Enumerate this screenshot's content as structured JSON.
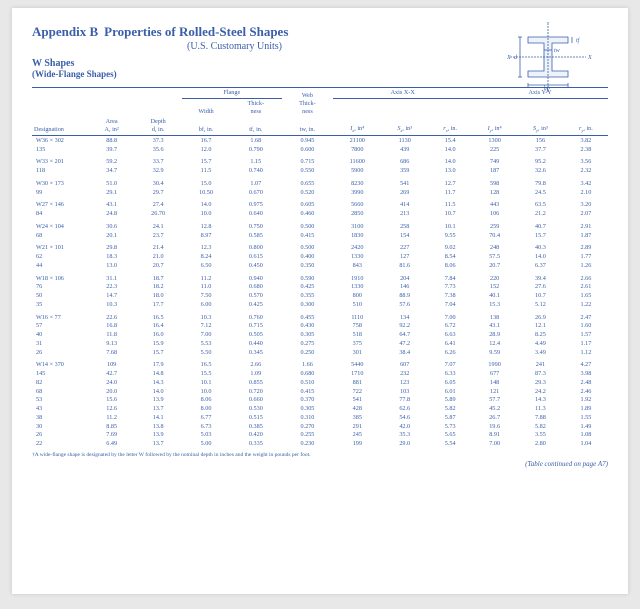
{
  "header": {
    "appendix": "Appendix B",
    "title": "Properties of Rolled-Steel Shapes",
    "units": "(U.S. Customary Units)",
    "section": "W Shapes",
    "section_sub": "(Wide-Flange Shapes)"
  },
  "diagram": {
    "stroke": "#3a5fa8",
    "label_y_top": "Y",
    "label_y_bot": "Y",
    "label_x_left": "X",
    "label_x_right": "X",
    "label_d": "d",
    "label_tf": "tf",
    "label_tw": "tw",
    "label_bf": "bf"
  },
  "columns": {
    "designation": "Designation",
    "area": "Area",
    "area_u": "A, in²",
    "depth": "Depth",
    "depth_u": "d, in.",
    "flange": "Flange",
    "width": "Width",
    "width_u": "bf, in.",
    "thick": "Thick-\nness",
    "thick_u": "tf, in.",
    "web": "Web\nThick-\nness",
    "web_u": "tw, in.",
    "axis_xx": "Axis X-X",
    "axis_yy": "Axis Y-Y",
    "Ix": "Ix, in⁴",
    "Sx": "Sx, in³",
    "rx": "rx, in.",
    "Iy": "Iy, in⁴",
    "Sy": "Sy, in³",
    "ry": "ry, in."
  },
  "groups": [
    {
      "rows": [
        [
          "W36 × 302",
          "88.8",
          "37.3",
          "16.7",
          "1.68",
          "0.945",
          "21100",
          "1130",
          "15.4",
          "1300",
          "156",
          "3.82"
        ],
        [
          "135",
          "39.7",
          "35.6",
          "12.0",
          "0.790",
          "0.600",
          "7800",
          "439",
          "14.0",
          "225",
          "37.7",
          "2.38"
        ]
      ]
    },
    {
      "rows": [
        [
          "W33 × 201",
          "59.2",
          "33.7",
          "15.7",
          "1.15",
          "0.715",
          "11600",
          "686",
          "14.0",
          "749",
          "95.2",
          "3.56"
        ],
        [
          "118",
          "34.7",
          "32.9",
          "11.5",
          "0.740",
          "0.550",
          "5900",
          "359",
          "13.0",
          "187",
          "32.6",
          "2.32"
        ]
      ]
    },
    {
      "rows": [
        [
          "W30 × 173",
          "51.0",
          "30.4",
          "15.0",
          "1.07",
          "0.655",
          "8230",
          "541",
          "12.7",
          "598",
          "79.8",
          "3.42"
        ],
        [
          "99",
          "29.1",
          "29.7",
          "10.50",
          "0.670",
          "0.520",
          "3990",
          "269",
          "11.7",
          "128",
          "24.5",
          "2.10"
        ]
      ]
    },
    {
      "rows": [
        [
          "W27 × 146",
          "43.1",
          "27.4",
          "14.0",
          "0.975",
          "0.605",
          "5660",
          "414",
          "11.5",
          "443",
          "63.5",
          "3.20"
        ],
        [
          "84",
          "24.8",
          "26.70",
          "10.0",
          "0.640",
          "0.460",
          "2850",
          "213",
          "10.7",
          "106",
          "21.2",
          "2.07"
        ]
      ]
    },
    {
      "rows": [
        [
          "W24 × 104",
          "30.6",
          "24.1",
          "12.8",
          "0.750",
          "0.500",
          "3100",
          "258",
          "10.1",
          "259",
          "40.7",
          "2.91"
        ],
        [
          "68",
          "20.1",
          "23.7",
          "8.97",
          "0.585",
          "0.415",
          "1830",
          "154",
          "9.55",
          "70.4",
          "15.7",
          "1.87"
        ]
      ]
    },
    {
      "rows": [
        [
          "W21 × 101",
          "29.8",
          "21.4",
          "12.3",
          "0.800",
          "0.500",
          "2420",
          "227",
          "9.02",
          "248",
          "40.3",
          "2.89"
        ],
        [
          "62",
          "18.3",
          "21.0",
          "8.24",
          "0.615",
          "0.400",
          "1330",
          "127",
          "8.54",
          "57.5",
          "14.0",
          "1.77"
        ],
        [
          "44",
          "13.0",
          "20.7",
          "6.50",
          "0.450",
          "0.350",
          "843",
          "81.6",
          "8.06",
          "20.7",
          "6.37",
          "1.26"
        ]
      ]
    },
    {
      "rows": [
        [
          "W18 × 106",
          "31.1",
          "18.7",
          "11.2",
          "0.940",
          "0.590",
          "1910",
          "204",
          "7.84",
          "220",
          "39.4",
          "2.66"
        ],
        [
          "76",
          "22.3",
          "18.2",
          "11.0",
          "0.680",
          "0.425",
          "1330",
          "146",
          "7.73",
          "152",
          "27.6",
          "2.61"
        ],
        [
          "50",
          "14.7",
          "18.0",
          "7.50",
          "0.570",
          "0.355",
          "800",
          "88.9",
          "7.38",
          "40.1",
          "10.7",
          "1.65"
        ],
        [
          "35",
          "10.3",
          "17.7",
          "6.00",
          "0.425",
          "0.300",
          "510",
          "57.6",
          "7.04",
          "15.3",
          "5.12",
          "1.22"
        ]
      ]
    },
    {
      "rows": [
        [
          "W16 × 77",
          "22.6",
          "16.5",
          "10.3",
          "0.760",
          "0.455",
          "1110",
          "134",
          "7.00",
          "138",
          "26.9",
          "2.47"
        ],
        [
          "57",
          "16.8",
          "16.4",
          "7.12",
          "0.715",
          "0.430",
          "758",
          "92.2",
          "6.72",
          "43.1",
          "12.1",
          "1.60"
        ],
        [
          "40",
          "11.8",
          "16.0",
          "7.00",
          "0.505",
          "0.305",
          "518",
          "64.7",
          "6.63",
          "28.9",
          "8.25",
          "1.57"
        ],
        [
          "31",
          "9.13",
          "15.9",
          "5.53",
          "0.440",
          "0.275",
          "375",
          "47.2",
          "6.41",
          "12.4",
          "4.49",
          "1.17"
        ],
        [
          "26",
          "7.68",
          "15.7",
          "5.50",
          "0.345",
          "0.250",
          "301",
          "38.4",
          "6.26",
          "9.59",
          "3.49",
          "1.12"
        ]
      ]
    },
    {
      "rows": [
        [
          "W14 × 370",
          "109",
          "17.9",
          "16.5",
          "2.66",
          "1.66",
          "5440",
          "607",
          "7.07",
          "1990",
          "241",
          "4.27"
        ],
        [
          "145",
          "42.7",
          "14.8",
          "15.5",
          "1.09",
          "0.680",
          "1710",
          "232",
          "6.33",
          "677",
          "87.3",
          "3.98"
        ],
        [
          "82",
          "24.0",
          "14.3",
          "10.1",
          "0.855",
          "0.510",
          "881",
          "123",
          "6.05",
          "148",
          "29.3",
          "2.48"
        ],
        [
          "68",
          "20.0",
          "14.0",
          "10.0",
          "0.720",
          "0.415",
          "722",
          "103",
          "6.01",
          "121",
          "24.2",
          "2.46"
        ],
        [
          "53",
          "15.6",
          "13.9",
          "8.06",
          "0.660",
          "0.370",
          "541",
          "77.8",
          "5.89",
          "57.7",
          "14.3",
          "1.92"
        ],
        [
          "43",
          "12.6",
          "13.7",
          "8.00",
          "0.530",
          "0.305",
          "428",
          "62.6",
          "5.82",
          "45.2",
          "11.3",
          "1.89"
        ],
        [
          "38",
          "11.2",
          "14.1",
          "6.77",
          "0.515",
          "0.310",
          "385",
          "54.6",
          "5.87",
          "26.7",
          "7.88",
          "1.55"
        ],
        [
          "30",
          "8.85",
          "13.8",
          "6.73",
          "0.385",
          "0.270",
          "291",
          "42.0",
          "5.73",
          "19.6",
          "5.82",
          "1.49"
        ],
        [
          "26",
          "7.69",
          "13.9",
          "5.03",
          "0.420",
          "0.255",
          "245",
          "35.3",
          "5.65",
          "8.91",
          "3.55",
          "1.08"
        ],
        [
          "22",
          "6.49",
          "13.7",
          "5.00",
          "0.335",
          "0.230",
          "199",
          "29.0",
          "5.54",
          "7.00",
          "2.80",
          "1.04"
        ]
      ]
    }
  ],
  "footnote": "†A wide-flange shape is designated by the letter W followed by the nominal depth in inches and the weight in pounds per foot.",
  "continued": "(Table continued on page A7)",
  "colors": {
    "text": "#3a5fa8",
    "page_bg": "#ffffff",
    "outer_bg": "#e8e8e8"
  }
}
